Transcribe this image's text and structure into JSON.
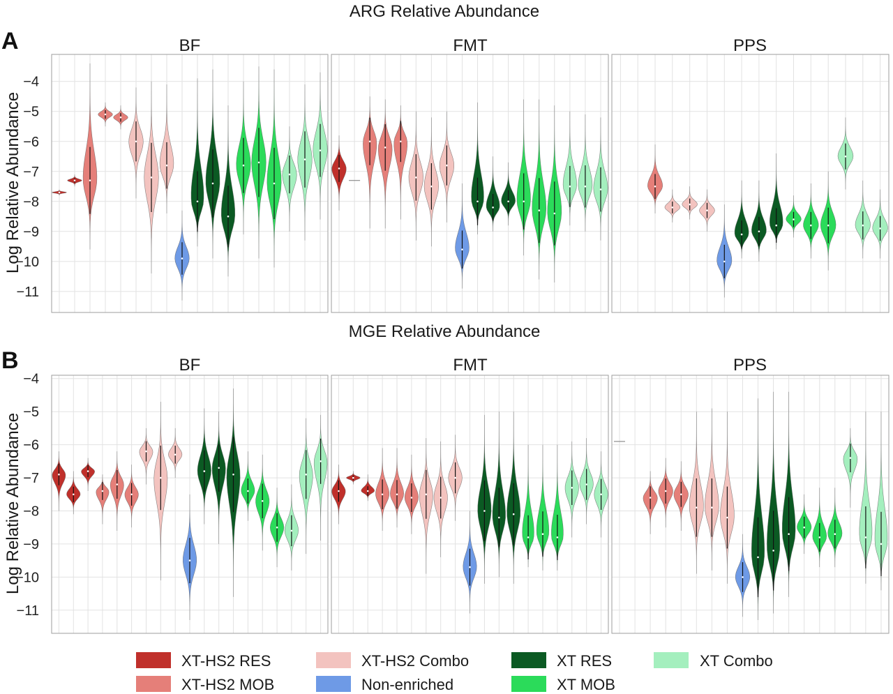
{
  "chart_data": [
    {
      "type": "violin",
      "title": "ARG Relative Abundance",
      "panel_letter": "A",
      "ylabel": "Log Relative Abundance",
      "ylim": [
        -11.7,
        -3.1
      ],
      "yticks": [
        -11,
        -10,
        -9,
        -8,
        -7,
        -6,
        -5,
        -4
      ],
      "grid": true,
      "facets": [
        {
          "name": "BF",
          "violins": [
            {
              "group": "XT-HS2 RES",
              "median": -7.7,
              "min": -7.8,
              "max": -7.6
            },
            {
              "group": "XT-HS2 RES",
              "median": -7.3,
              "min": -7.5,
              "max": -7.1
            },
            {
              "group": "XT-HS2 MOB",
              "median": -7.3,
              "min": -9.6,
              "max": -3.4
            },
            {
              "group": "XT-HS2 MOB",
              "median": -5.1,
              "min": -5.5,
              "max": -4.7
            },
            {
              "group": "XT-HS2 MOB",
              "median": -5.2,
              "min": -5.6,
              "max": -4.8
            },
            {
              "group": "XT-HS2 Combo",
              "median": -6.0,
              "min": -7.9,
              "max": -4.2
            },
            {
              "group": "XT-HS2 Combo",
              "median": -7.2,
              "min": -10.4,
              "max": -4.0
            },
            {
              "group": "XT-HS2 Combo",
              "median": -6.8,
              "min": -8.4,
              "max": -4.1
            },
            {
              "group": "Non-enriched",
              "median": -9.9,
              "min": -11.3,
              "max": -8.3
            },
            {
              "group": "XT RES",
              "median": -8.0,
              "min": -9.5,
              "max": -3.9
            },
            {
              "group": "XT RES",
              "median": -7.4,
              "min": -9.9,
              "max": -3.6
            },
            {
              "group": "XT RES",
              "median": -8.5,
              "min": -10.5,
              "max": -4.8
            },
            {
              "group": "XT MOB",
              "median": -6.8,
              "min": -9.1,
              "max": -4.0
            },
            {
              "group": "XT MOB",
              "median": -6.7,
              "min": -9.9,
              "max": -3.5
            },
            {
              "group": "XT MOB",
              "median": -7.4,
              "min": -10.2,
              "max": -3.6
            },
            {
              "group": "XT Combo",
              "median": -7.1,
              "min": -9.0,
              "max": -5.5
            },
            {
              "group": "XT Combo",
              "median": -6.6,
              "min": -9.3,
              "max": -4.1
            },
            {
              "group": "XT Combo",
              "median": -6.3,
              "min": -8.6,
              "max": -3.7
            }
          ]
        },
        {
          "name": "FMT",
          "violins": [
            {
              "group": "XT-HS2 RES",
              "median": -6.9,
              "min": -8.3,
              "max": -5.8
            },
            {
              "group": "XT-HS2 RES",
              "median": -7.3,
              "min": -7.3,
              "max": -7.3
            },
            {
              "group": "XT-HS2 MOB",
              "median": -6.0,
              "min": -8.9,
              "max": -4.5
            },
            {
              "group": "XT-HS2 MOB",
              "median": -6.2,
              "min": -8.9,
              "max": -4.6
            },
            {
              "group": "XT-HS2 MOB",
              "median": -6.0,
              "min": -8.6,
              "max": -4.8
            },
            {
              "group": "XT-HS2 Combo",
              "median": -7.2,
              "min": -9.3,
              "max": -5.0
            },
            {
              "group": "XT-HS2 Combo",
              "median": -7.5,
              "min": -9.5,
              "max": -5.2
            },
            {
              "group": "XT-HS2 Combo",
              "median": -6.8,
              "min": -8.7,
              "max": -5.0
            },
            {
              "group": "Non-enriched",
              "median": -9.6,
              "min": -10.9,
              "max": -7.4
            },
            {
              "group": "XT RES",
              "median": -8.0,
              "min": -9.1,
              "max": -4.7
            },
            {
              "group": "XT RES",
              "median": -8.2,
              "min": -9.0,
              "max": -6.5
            },
            {
              "group": "XT RES",
              "median": -8.0,
              "min": -8.8,
              "max": -6.7
            },
            {
              "group": "XT MOB",
              "median": -8.0,
              "min": -9.8,
              "max": -4.6
            },
            {
              "group": "XT MOB",
              "median": -8.3,
              "min": -10.6,
              "max": -4.6
            },
            {
              "group": "XT MOB",
              "median": -8.4,
              "min": -10.7,
              "max": -4.8
            },
            {
              "group": "XT Combo",
              "median": -7.5,
              "min": -8.8,
              "max": -5.0
            },
            {
              "group": "XT Combo",
              "median": -7.5,
              "min": -9.0,
              "max": -5.1
            },
            {
              "group": "XT Combo",
              "median": -7.6,
              "min": -9.3,
              "max": -5.2
            }
          ]
        },
        {
          "name": "PPS",
          "violins": [
            {
              "group": "XT-HS2 RES",
              "median": null
            },
            {
              "group": "XT-HS2 RES",
              "median": null
            },
            {
              "group": "XT-HS2 MOB",
              "median": -7.5,
              "min": -8.4,
              "max": -6.1
            },
            {
              "group": "XT-HS2 Combo",
              "median": -8.2,
              "min": -8.7,
              "max": -7.6
            },
            {
              "group": "XT-HS2 Combo",
              "median": -8.1,
              "min": -8.6,
              "max": -7.5
            },
            {
              "group": "XT-HS2 Combo",
              "median": -8.3,
              "min": -9.0,
              "max": -7.6
            },
            {
              "group": "Non-enriched",
              "median": -10.0,
              "min": -11.2,
              "max": -8.1
            },
            {
              "group": "XT RES",
              "median": -9.1,
              "min": -9.9,
              "max": -7.3
            },
            {
              "group": "XT RES",
              "median": -9.0,
              "min": -10.0,
              "max": -7.3
            },
            {
              "group": "XT RES",
              "median": -8.8,
              "min": -9.6,
              "max": -6.4
            },
            {
              "group": "XT MOB",
              "median": -8.6,
              "min": -9.2,
              "max": -7.8
            },
            {
              "group": "XT MOB",
              "median": -8.8,
              "min": -9.9,
              "max": -7.4
            },
            {
              "group": "XT MOB",
              "median": -8.8,
              "min": -10.3,
              "max": -7.0
            },
            {
              "group": "XT Combo",
              "median": -6.5,
              "min": -7.6,
              "max": -5.2
            },
            {
              "group": "XT Combo",
              "median": -8.8,
              "min": -9.9,
              "max": -7.3
            },
            {
              "group": "XT Combo",
              "median": -8.9,
              "min": -9.9,
              "max": -7.6
            }
          ]
        }
      ]
    },
    {
      "type": "violin",
      "title": "MGE Relative Abundance",
      "panel_letter": "B",
      "ylabel": "Log Relative Abundance",
      "ylim": [
        -11.7,
        -3.9
      ],
      "yticks": [
        -11,
        -10,
        -9,
        -8,
        -7,
        -6,
        -5,
        -4
      ],
      "grid": true,
      "facets": [
        {
          "name": "BF",
          "violins": [
            {
              "group": "XT-HS2 RES",
              "median": -6.9,
              "min": -8.0,
              "max": -6.2
            },
            {
              "group": "XT-HS2 RES",
              "median": -7.5,
              "min": -8.1,
              "max": -6.8
            },
            {
              "group": "XT-HS2 RES",
              "median": -6.8,
              "min": -7.4,
              "max": -6.4
            },
            {
              "group": "XT-HS2 MOB",
              "median": -7.4,
              "min": -8.4,
              "max": -6.9
            },
            {
              "group": "XT-HS2 MOB",
              "median": -7.2,
              "min": -8.6,
              "max": -6.2
            },
            {
              "group": "XT-HS2 MOB",
              "median": -7.5,
              "min": -8.5,
              "max": -6.6
            },
            {
              "group": "XT-HS2 Combo",
              "median": -6.2,
              "min": -7.2,
              "max": -5.5
            },
            {
              "group": "XT-HS2 Combo",
              "median": -7.0,
              "min": -10.1,
              "max": -4.7
            },
            {
              "group": "XT-HS2 Combo",
              "median": -6.3,
              "min": -7.0,
              "max": -5.5
            },
            {
              "group": "Non-enriched",
              "median": -9.5,
              "min": -11.3,
              "max": -7.5
            },
            {
              "group": "XT RES",
              "median": -6.8,
              "min": -8.4,
              "max": -4.9
            },
            {
              "group": "XT RES",
              "median": -6.7,
              "min": -9.0,
              "max": -5.0
            },
            {
              "group": "XT RES",
              "median": -6.9,
              "min": -10.6,
              "max": -4.3
            },
            {
              "group": "XT MOB",
              "median": -7.4,
              "min": -8.3,
              "max": -6.2
            },
            {
              "group": "XT MOB",
              "median": -7.7,
              "min": -9.2,
              "max": -6.3
            },
            {
              "group": "XT MOB",
              "median": -8.5,
              "min": -9.7,
              "max": -7.3
            },
            {
              "group": "XT Combo",
              "median": -8.6,
              "min": -9.8,
              "max": -7.2
            },
            {
              "group": "XT Combo",
              "median": -6.9,
              "min": -9.3,
              "max": -5.2
            },
            {
              "group": "XT Combo",
              "median": -6.5,
              "min": -8.9,
              "max": -5.1
            }
          ]
        },
        {
          "name": "FMT",
          "violins": [
            {
              "group": "XT-HS2 RES",
              "median": -7.4,
              "min": -8.4,
              "max": -6.6
            },
            {
              "group": "XT-HS2 RES",
              "median": -7.0,
              "min": -7.2,
              "max": -6.8
            },
            {
              "group": "XT-HS2 RES",
              "median": -7.4,
              "min": -7.7,
              "max": -6.9
            },
            {
              "group": "XT-HS2 MOB",
              "median": -7.5,
              "min": -8.6,
              "max": -6.1
            },
            {
              "group": "XT-HS2 MOB",
              "median": -7.5,
              "min": -8.5,
              "max": -6.1
            },
            {
              "group": "XT-HS2 MOB",
              "median": -7.6,
              "min": -8.7,
              "max": -6.3
            },
            {
              "group": "XT-HS2 Combo",
              "median": -7.5,
              "min": -9.9,
              "max": -5.8
            },
            {
              "group": "XT-HS2 Combo",
              "median": -7.6,
              "min": -9.4,
              "max": -5.9
            },
            {
              "group": "XT-HS2 Combo",
              "median": -7.0,
              "min": -8.3,
              "max": -5.7
            },
            {
              "group": "Non-enriched",
              "median": -9.7,
              "min": -11.1,
              "max": -8.0
            },
            {
              "group": "XT RES",
              "median": -8.0,
              "min": -10.2,
              "max": -5.1
            },
            {
              "group": "XT RES",
              "median": -8.2,
              "min": -10.0,
              "max": -5.0
            },
            {
              "group": "XT RES",
              "median": -8.1,
              "min": -10.2,
              "max": -5.0
            },
            {
              "group": "XT MOB",
              "median": -8.8,
              "min": -9.7,
              "max": -6.0
            },
            {
              "group": "XT MOB",
              "median": -8.7,
              "min": -9.8,
              "max": -6.0
            },
            {
              "group": "XT MOB",
              "median": -8.8,
              "min": -9.8,
              "max": -6.0
            },
            {
              "group": "XT Combo",
              "median": -7.3,
              "min": -8.8,
              "max": -5.9
            },
            {
              "group": "XT Combo",
              "median": -7.2,
              "min": -8.4,
              "max": -5.8
            },
            {
              "group": "XT Combo",
              "median": -7.5,
              "min": -8.8,
              "max": -6.2
            }
          ]
        },
        {
          "name": "PPS",
          "violins": [
            {
              "group": "XT-HS2 RES",
              "median": -5.9,
              "min": -5.9,
              "max": -5.9
            },
            {
              "group": "XT-HS2 RES",
              "median": null
            },
            {
              "group": "XT-HS2 MOB",
              "median": -7.6,
              "min": -8.7,
              "max": -6.8
            },
            {
              "group": "XT-HS2 MOB",
              "median": -7.4,
              "min": -8.5,
              "max": -6.4
            },
            {
              "group": "XT-HS2 MOB",
              "median": -7.5,
              "min": -8.6,
              "max": -6.5
            },
            {
              "group": "XT-HS2 Combo",
              "median": -7.9,
              "min": -9.9,
              "max": -5.0
            },
            {
              "group": "XT-HS2 Combo",
              "median": -7.9,
              "min": -9.8,
              "max": -4.9
            },
            {
              "group": "XT-HS2 Combo",
              "median": -8.2,
              "min": -10.2,
              "max": -5.0
            },
            {
              "group": "Non-enriched",
              "median": -10.0,
              "min": -11.2,
              "max": -8.7
            },
            {
              "group": "XT RES",
              "median": -9.4,
              "min": -11.3,
              "max": -4.6
            },
            {
              "group": "XT RES",
              "median": -9.2,
              "min": -11.1,
              "max": -4.4
            },
            {
              "group": "XT RES",
              "median": -8.7,
              "min": -10.6,
              "max": -4.4
            },
            {
              "group": "XT MOB",
              "median": -8.5,
              "min": -9.3,
              "max": -7.5
            },
            {
              "group": "XT MOB",
              "median": -8.8,
              "min": -9.7,
              "max": -7.3
            },
            {
              "group": "XT MOB",
              "median": -8.7,
              "min": -9.7,
              "max": -7.3
            },
            {
              "group": "XT Combo",
              "median": -6.4,
              "min": -7.9,
              "max": -5.5
            },
            {
              "group": "XT Combo",
              "median": -8.8,
              "min": -10.2,
              "max": -5.0
            },
            {
              "group": "XT Combo",
              "median": -9.0,
              "min": -10.4,
              "max": -5.0
            }
          ]
        }
      ]
    }
  ],
  "legend": {
    "placement": "bottom",
    "items": [
      {
        "label": "XT-HS2 RES",
        "color": "#c0302b"
      },
      {
        "label": "XT-HS2 MOB",
        "color": "#e57f79"
      },
      {
        "label": "XT-HS2 Combo",
        "color": "#f3c3bf"
      },
      {
        "label": "Non-enriched",
        "color": "#6e9ae6"
      },
      {
        "label": "XT RES",
        "color": "#0b5a23"
      },
      {
        "label": "XT MOB",
        "color": "#2bdb5a"
      },
      {
        "label": "XT Combo",
        "color": "#a4efbe"
      }
    ]
  }
}
